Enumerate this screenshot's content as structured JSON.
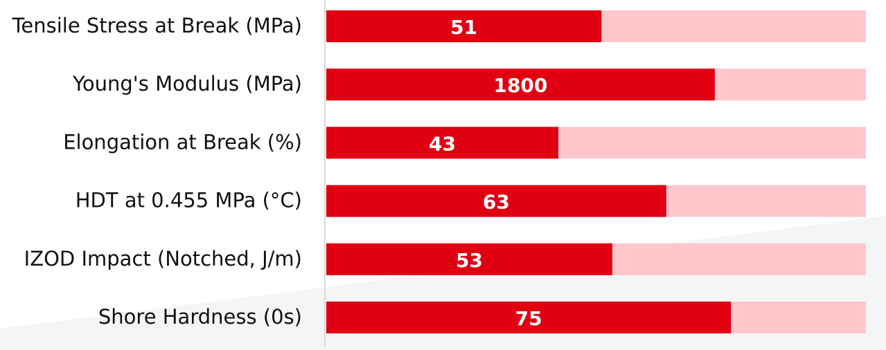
{
  "chart_data": {
    "type": "bar",
    "orientation": "horizontal",
    "categories": [
      "Tensile Stress at Break (MPa)",
      "Young's Modulus (MPa)",
      "Elongation at Break (%)",
      "HDT at 0.455 MPa (°C)",
      "IZOD Impact (Notched, J/m)",
      "Shore Hardness (0s)"
    ],
    "values": [
      51,
      1800,
      43,
      63,
      53,
      75
    ],
    "xlims": [
      [
        0,
        100
      ],
      [
        0,
        2500
      ],
      [
        0,
        100
      ],
      [
        0,
        100
      ],
      [
        0,
        100
      ],
      [
        0,
        100
      ]
    ],
    "color": "#e00012",
    "track_color": "#ffc7cb"
  }
}
